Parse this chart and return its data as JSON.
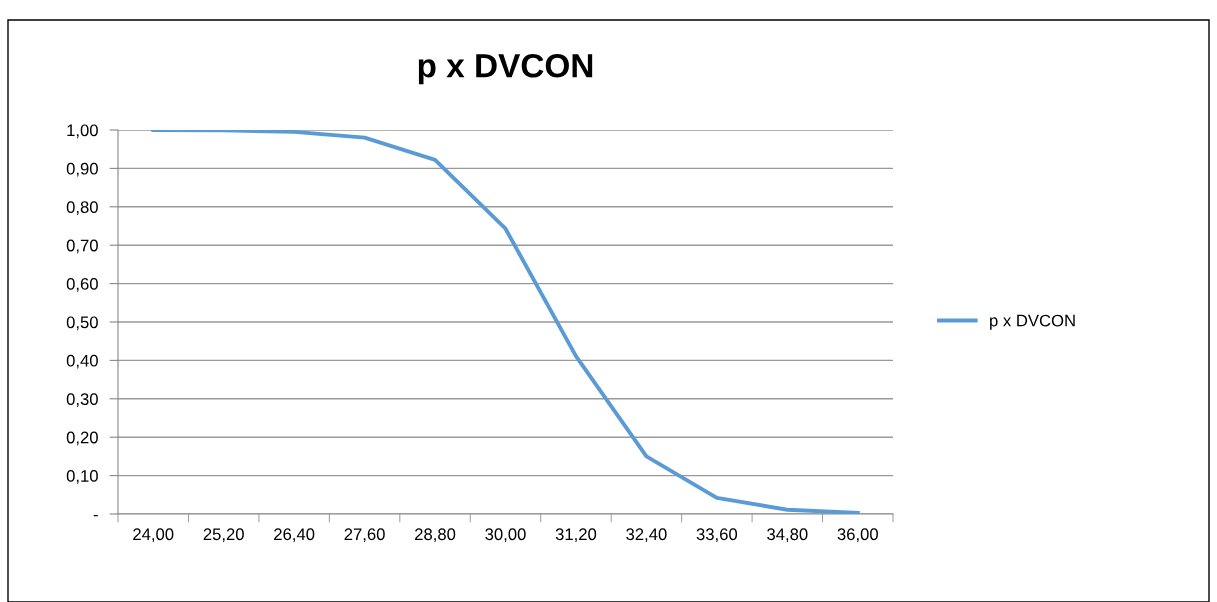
{
  "chart_data": {
    "type": "line",
    "title": "p x DVCON",
    "categories": [
      "24,00",
      "25,20",
      "26,40",
      "27,60",
      "28,80",
      "30,00",
      "31,20",
      "32,40",
      "33,60",
      "34,80",
      "36,00"
    ],
    "series": [
      {
        "name": "p x DVCON",
        "color": "#5b9bd5",
        "values": [
          1.0,
          0.999,
          0.995,
          0.98,
          0.922,
          0.743,
          0.411,
          0.15,
          0.042,
          0.011,
          0.003
        ]
      }
    ],
    "ylim": [
      0,
      1
    ],
    "yticks": [
      {
        "value": 0,
        "label": "-"
      },
      {
        "value": 0.1,
        "label": "0,10"
      },
      {
        "value": 0.2,
        "label": "0,20"
      },
      {
        "value": 0.3,
        "label": "0,30"
      },
      {
        "value": 0.4,
        "label": "0,40"
      },
      {
        "value": 0.5,
        "label": "0,50"
      },
      {
        "value": 0.6,
        "label": "0,60"
      },
      {
        "value": 0.7,
        "label": "0,70"
      },
      {
        "value": 0.8,
        "label": "0,80"
      },
      {
        "value": 0.9,
        "label": "0,90"
      },
      {
        "value": 1.0,
        "label": "1,00"
      }
    ],
    "grid": "y",
    "legend": "right",
    "marker": "none",
    "line_style": "solid"
  }
}
